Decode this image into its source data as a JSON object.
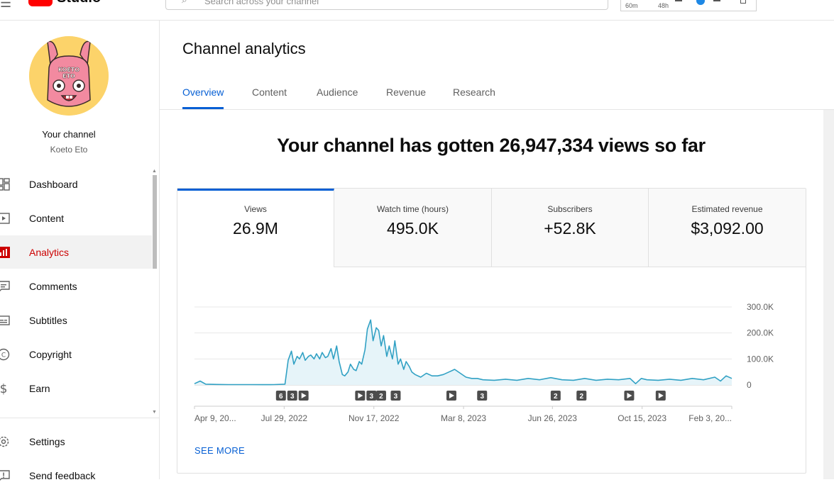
{
  "app": {
    "brand_name": "Studio",
    "search_placeholder": "Search across your channel",
    "realtime_labels": [
      "60m",
      "48h"
    ]
  },
  "sidebar": {
    "channel_title": "Your channel",
    "channel_name": "Koeto Eto",
    "avatar_text": "KOETO ETO",
    "items": [
      {
        "label": "Dashboard",
        "icon": "dashboard-icon",
        "active": false
      },
      {
        "label": "Content",
        "icon": "content-icon",
        "active": false
      },
      {
        "label": "Analytics",
        "icon": "analytics-icon",
        "active": true
      },
      {
        "label": "Comments",
        "icon": "comments-icon",
        "active": false
      },
      {
        "label": "Subtitles",
        "icon": "subtitles-icon",
        "active": false
      },
      {
        "label": "Copyright",
        "icon": "copyright-icon",
        "active": false
      },
      {
        "label": "Earn",
        "icon": "earn-icon",
        "active": false
      }
    ],
    "bottom_items": [
      {
        "label": "Settings",
        "icon": "gear-icon"
      },
      {
        "label": "Send feedback",
        "icon": "feedback-icon"
      }
    ]
  },
  "main": {
    "title": "Channel analytics",
    "tabs": [
      {
        "label": "Overview",
        "active": true
      },
      {
        "label": "Content",
        "active": false
      },
      {
        "label": "Audience",
        "active": false
      },
      {
        "label": "Revenue",
        "active": false
      },
      {
        "label": "Research",
        "active": false
      }
    ],
    "headline": "Your channel has gotten 26,947,334 views so far",
    "metrics": [
      {
        "label": "Views",
        "value": "26.9M",
        "active": true
      },
      {
        "label": "Watch time (hours)",
        "value": "495.0K",
        "active": false
      },
      {
        "label": "Subscribers",
        "value": "+52.8K",
        "active": false
      },
      {
        "label": "Estimated revenue",
        "value": "$3,092.00",
        "active": false
      }
    ],
    "see_more": "SEE MORE"
  },
  "colors": {
    "accent_blue": "#065fd4",
    "active_red": "#cc0000",
    "chart_line": "#31a1c4",
    "chart_fill": "#e6f4f9",
    "marker_bg": "#4d4d4d"
  },
  "chart_data": {
    "type": "area",
    "title": "",
    "xlabel": "",
    "ylabel": "",
    "y_ticks": [
      "300.0K",
      "200.0K",
      "100.0K",
      "0"
    ],
    "y_tick_values": [
      300000,
      200000,
      100000,
      0
    ],
    "ylim": [
      0,
      300000
    ],
    "x_tick_labels": [
      "Apr 9, 20...",
      "Jul 29, 2022",
      "Nov 17, 2022",
      "Mar 8, 2023",
      "Jun 26, 2023",
      "Oct 15, 2023",
      "Feb 3, 20..."
    ],
    "x_tick_dates": [
      "2022-04-09",
      "2022-07-29",
      "2022-11-17",
      "2023-03-08",
      "2023-06-26",
      "2023-10-15",
      "2024-02-03"
    ],
    "grid": true,
    "series": [
      {
        "x": [
          "2022-04-09",
          "2022-04-16",
          "2022-04-23",
          "2022-05-07",
          "2022-05-21",
          "2022-06-04",
          "2022-06-18",
          "2022-07-02",
          "2022-07-16",
          "2022-07-30",
          "2022-08-03",
          "2022-08-07",
          "2022-08-10",
          "2022-08-14",
          "2022-08-17",
          "2022-08-21",
          "2022-08-24",
          "2022-08-28",
          "2022-08-31",
          "2022-09-04",
          "2022-09-07",
          "2022-09-11",
          "2022-09-14",
          "2022-09-18",
          "2022-09-21",
          "2022-09-25",
          "2022-09-28",
          "2022-10-02",
          "2022-10-05",
          "2022-10-09",
          "2022-10-12",
          "2022-10-16",
          "2022-10-19",
          "2022-10-23",
          "2022-10-26",
          "2022-10-30",
          "2022-11-02",
          "2022-11-06",
          "2022-11-09",
          "2022-11-13",
          "2022-11-16",
          "2022-11-20",
          "2022-11-23",
          "2022-11-26",
          "2022-11-29",
          "2022-12-03",
          "2022-12-06",
          "2022-12-10",
          "2022-12-13",
          "2022-12-17",
          "2022-12-20",
          "2022-12-24",
          "2022-12-27",
          "2022-12-31",
          "2023-01-03",
          "2023-01-07",
          "2023-01-14",
          "2023-01-21",
          "2023-01-28",
          "2023-02-04",
          "2023-02-11",
          "2023-02-18",
          "2023-02-25",
          "2023-03-04",
          "2023-03-11",
          "2023-03-18",
          "2023-03-25",
          "2023-04-01",
          "2023-04-15",
          "2023-04-29",
          "2023-05-13",
          "2023-05-27",
          "2023-06-10",
          "2023-06-24",
          "2023-07-08",
          "2023-07-22",
          "2023-08-05",
          "2023-08-19",
          "2023-09-02",
          "2023-09-16",
          "2023-09-30",
          "2023-10-07",
          "2023-10-14",
          "2023-10-21",
          "2023-11-04",
          "2023-11-18",
          "2023-12-02",
          "2023-12-16",
          "2023-12-30",
          "2024-01-13",
          "2024-01-20",
          "2024-01-27",
          "2024-02-03"
        ],
        "y": [
          5000,
          15000,
          3000,
          2000,
          1500,
          1500,
          1500,
          1000,
          1500,
          3000,
          95000,
          130000,
          80000,
          110000,
          100000,
          125000,
          95000,
          110000,
          115000,
          100000,
          120000,
          100000,
          125000,
          105000,
          110000,
          140000,
          100000,
          150000,
          90000,
          40000,
          35000,
          50000,
          80000,
          60000,
          55000,
          90000,
          80000,
          135000,
          215000,
          250000,
          170000,
          220000,
          210000,
          150000,
          190000,
          110000,
          150000,
          100000,
          170000,
          80000,
          100000,
          60000,
          90000,
          70000,
          50000,
          40000,
          30000,
          45000,
          35000,
          35000,
          40000,
          50000,
          60000,
          45000,
          30000,
          25000,
          25000,
          20000,
          18000,
          22000,
          18000,
          25000,
          20000,
          28000,
          20000,
          18000,
          25000,
          18000,
          22000,
          20000,
          25000,
          5000,
          25000,
          20000,
          18000,
          22000,
          18000,
          25000,
          20000,
          30000,
          15000,
          35000,
          25000
        ]
      }
    ],
    "markers": [
      {
        "label": "6",
        "date": "2022-07-25"
      },
      {
        "label": "3",
        "date": "2022-08-08"
      },
      {
        "label": "play",
        "date": "2022-08-22"
      },
      {
        "label": "play",
        "date": "2022-10-31"
      },
      {
        "label": "3",
        "date": "2022-11-14"
      },
      {
        "label": "2",
        "date": "2022-11-26"
      },
      {
        "label": "3",
        "date": "2022-12-14"
      },
      {
        "label": "play",
        "date": "2023-02-21"
      },
      {
        "label": "3",
        "date": "2023-03-31"
      },
      {
        "label": "2",
        "date": "2023-06-30"
      },
      {
        "label": "2",
        "date": "2023-08-01"
      },
      {
        "label": "play",
        "date": "2023-09-29"
      },
      {
        "label": "play",
        "date": "2023-11-07"
      }
    ]
  }
}
